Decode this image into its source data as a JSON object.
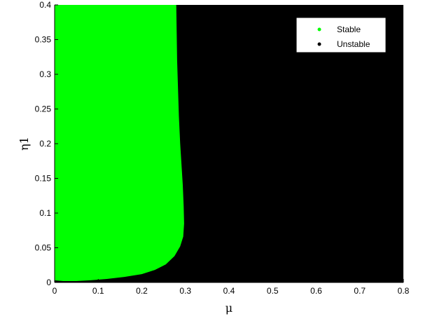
{
  "chart_data": {
    "type": "scatter",
    "title": "",
    "xlabel": "μ",
    "ylabel": "η1",
    "xlim": [
      0,
      0.8
    ],
    "ylim": [
      0,
      0.4
    ],
    "xticks": [
      "0",
      "0.1",
      "0.2",
      "0.3",
      "0.4",
      "0.5",
      "0.6",
      "0.7",
      "0.8"
    ],
    "yticks": [
      "0",
      "0.05",
      "0.1",
      "0.15",
      "0.2",
      "0.25",
      "0.3",
      "0.35",
      "0.4"
    ],
    "legend_position": "top-right",
    "grid": false,
    "series": [
      {
        "name": "Stable",
        "color": "#00ff00",
        "region": "left of boundary",
        "boundary": [
          [
            0.0,
            0.003
          ],
          [
            0.02,
            0.002
          ],
          [
            0.05,
            0.002
          ],
          [
            0.08,
            0.003
          ],
          [
            0.12,
            0.005
          ],
          [
            0.16,
            0.008
          ],
          [
            0.2,
            0.012
          ],
          [
            0.23,
            0.018
          ],
          [
            0.255,
            0.026
          ],
          [
            0.275,
            0.038
          ],
          [
            0.288,
            0.052
          ],
          [
            0.295,
            0.066
          ],
          [
            0.297,
            0.085
          ],
          [
            0.296,
            0.11
          ],
          [
            0.294,
            0.14
          ],
          [
            0.291,
            0.17
          ],
          [
            0.288,
            0.2
          ],
          [
            0.285,
            0.24
          ],
          [
            0.283,
            0.28
          ],
          [
            0.281,
            0.32
          ],
          [
            0.28,
            0.36
          ],
          [
            0.279,
            0.4
          ]
        ]
      },
      {
        "name": "Unstable",
        "color": "#000000",
        "region": "right of boundary"
      }
    ]
  }
}
